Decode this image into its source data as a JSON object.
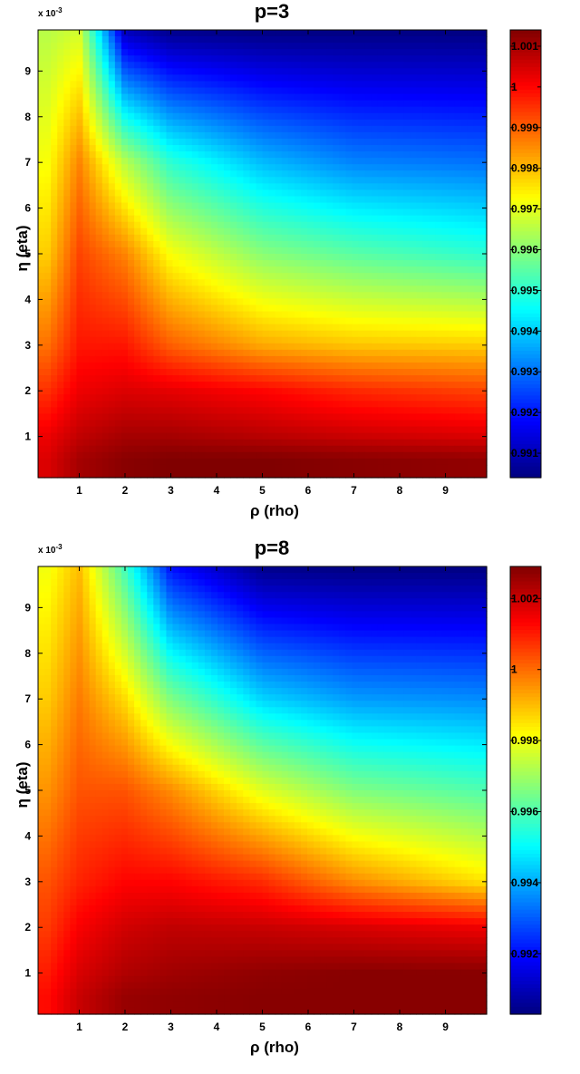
{
  "chart_data": [
    {
      "type": "heatmap",
      "title": "p=3",
      "xlabel": "ρ (rho)",
      "ylabel": "η (eta)",
      "y_exponent_base": "x 10",
      "y_exponent_power": "-3",
      "xlim": [
        0.1,
        9.9
      ],
      "ylim": [
        0.1,
        9.9
      ],
      "xticks": [
        "1",
        "2",
        "3",
        "4",
        "5",
        "6",
        "7",
        "8",
        "9"
      ],
      "yticks": [
        "1",
        "2",
        "3",
        "4",
        "5",
        "6",
        "7",
        "8",
        "9"
      ],
      "colorbar": {
        "range": [
          0.9904,
          1.0014
        ],
        "ticks": [
          "0.991",
          "0.992",
          "0.993",
          "0.994",
          "0.995",
          "0.996",
          "0.997",
          "0.998",
          "0.999",
          "1",
          "1.001"
        ],
        "tick_values": [
          0.991,
          0.992,
          0.993,
          0.994,
          0.995,
          0.996,
          0.997,
          0.998,
          0.999,
          1.0,
          1.001
        ],
        "colormap": "jet"
      },
      "x": [
        0.3,
        1,
        2,
        3,
        5,
        7,
        9.9
      ],
      "y": [
        0.5,
        1,
        2,
        3,
        5,
        7,
        9.9
      ],
      "values": [
        [
          1.0004,
          1.001,
          1.0013,
          1.0014,
          1.0014,
          1.0013,
          1.0012
        ],
        [
          1.0002,
          1.0007,
          1.001,
          1.001,
          1.0008,
          1.0006,
          1.0004
        ],
        [
          0.9995,
          1.0002,
          1.0004,
          1.0003,
          1.0,
          0.9996,
          0.9993
        ],
        [
          0.9988,
          0.9998,
          0.9998,
          0.999,
          0.9982,
          0.9979,
          0.9978
        ],
        [
          0.9978,
          0.9993,
          0.9986,
          0.9972,
          0.996,
          0.9955,
          0.995
        ],
        [
          0.9972,
          0.9986,
          0.9965,
          0.995,
          0.9938,
          0.9932,
          0.993
        ],
        [
          0.9965,
          0.9968,
          0.991,
          0.9905,
          0.9904,
          0.9904,
          0.9904
        ]
      ]
    },
    {
      "type": "heatmap",
      "title": "p=8",
      "xlabel": "ρ (rho)",
      "ylabel": "η (eta)",
      "y_exponent_base": "x 10",
      "y_exponent_power": "-3",
      "xlim": [
        0.1,
        9.9
      ],
      "ylim": [
        0.1,
        9.9
      ],
      "xticks": [
        "1",
        "2",
        "3",
        "4",
        "5",
        "6",
        "7",
        "8",
        "9"
      ],
      "yticks": [
        "1",
        "2",
        "3",
        "4",
        "5",
        "6",
        "7",
        "8",
        "9"
      ],
      "colorbar": {
        "range": [
          0.9903,
          1.0029
        ],
        "ticks": [
          "0.992",
          "0.994",
          "0.996",
          "0.998",
          "1",
          "1.002"
        ],
        "tick_values": [
          0.992,
          0.994,
          0.996,
          0.998,
          1.0,
          1.002
        ],
        "colormap": "jet"
      },
      "x": [
        0.3,
        1,
        2,
        3,
        5,
        7,
        9.9
      ],
      "y": [
        0.5,
        1,
        2,
        3,
        5,
        7,
        9.9
      ],
      "values": [
        [
          1.0012,
          1.002,
          1.0026,
          1.0027,
          1.0028,
          1.0028,
          1.0028
        ],
        [
          1.001,
          1.0018,
          1.0023,
          1.0025,
          1.0027,
          1.0028,
          1.0028
        ],
        [
          1.0006,
          1.0014,
          1.0019,
          1.0021,
          1.002,
          1.0018,
          1.0015
        ],
        [
          1.0003,
          1.0009,
          1.0013,
          1.0013,
          1.0008,
          0.9996,
          0.9985
        ],
        [
          0.9995,
          1.0003,
          1.0003,
          0.9996,
          0.9978,
          0.9966,
          0.996
        ],
        [
          0.9988,
          0.9998,
          0.9986,
          0.9966,
          0.9945,
          0.9938,
          0.9936
        ],
        [
          0.998,
          0.999,
          0.9958,
          0.992,
          0.9904,
          0.9903,
          0.9903
        ]
      ]
    }
  ]
}
